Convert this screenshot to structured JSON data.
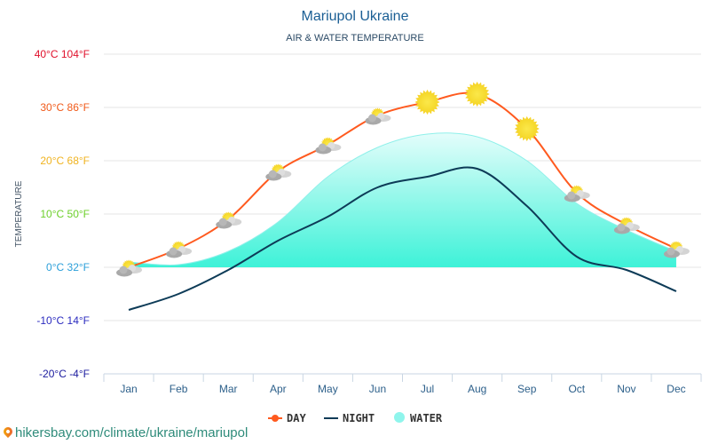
{
  "colors": {
    "day": "#ff5a1f",
    "night": "#0d3b57",
    "water_top": "#d6fcf8",
    "water_bottom": "#3ef2d8",
    "water_edge": "#8ff0ea",
    "grid": "#e3e3e3",
    "title": "#1a5e94"
  },
  "chart_data": {
    "type": "line",
    "title": "Mariupol Ukraine",
    "subtitle": "AIR & WATER TEMPERATURE",
    "xlabel": "",
    "ylabel": "TEMPERATURE",
    "ylim": [
      -20,
      40
    ],
    "grid": true,
    "legend_position": "bottom",
    "categories": [
      "Jan",
      "Feb",
      "Mar",
      "Apr",
      "May",
      "Jun",
      "Jul",
      "Aug",
      "Sep",
      "Oct",
      "Nov",
      "Dec"
    ],
    "y_ticks": [
      {
        "value": 40,
        "label": "40°C 104°F",
        "color": "#e0102b"
      },
      {
        "value": 30,
        "label": "30°C 86°F",
        "color": "#f05a1a"
      },
      {
        "value": 20,
        "label": "20°C 68°F",
        "color": "#f0b320"
      },
      {
        "value": 10,
        "label": "10°C 50°F",
        "color": "#6ccf2a"
      },
      {
        "value": 0,
        "label": "0°C 32°F",
        "color": "#2b9fd9"
      },
      {
        "value": -10,
        "label": "-10°C 14°F",
        "color": "#2b2bbf"
      },
      {
        "value": -20,
        "label": "-20°C -4°F",
        "color": "#1a1a9e"
      }
    ],
    "series": [
      {
        "name": "DAY",
        "type": "line",
        "values": [
          0,
          3.5,
          9,
          18,
          23,
          28.5,
          31,
          32.5,
          26,
          14,
          8,
          3.5
        ],
        "weather_icons": [
          "sun-cloud",
          "sun-cloud",
          "sun-cloud",
          "sun-cloud",
          "sun-cloud",
          "sun-cloud",
          "sun",
          "sun",
          "sun",
          "sun-cloud",
          "sun-cloud",
          "sun-cloud"
        ]
      },
      {
        "name": "NIGHT",
        "type": "line",
        "values": [
          -8,
          -5,
          -0.5,
          5,
          9.5,
          15,
          17,
          18.5,
          11.5,
          2,
          -0.5,
          -4.5
        ]
      },
      {
        "name": "WATER",
        "type": "area",
        "values": [
          1,
          0.5,
          3,
          8.5,
          17,
          22.5,
          25,
          24.5,
          20,
          12,
          7,
          3
        ]
      }
    ]
  },
  "source": {
    "url_text": "hikersbay.com/climate/ukraine/mariupol"
  }
}
